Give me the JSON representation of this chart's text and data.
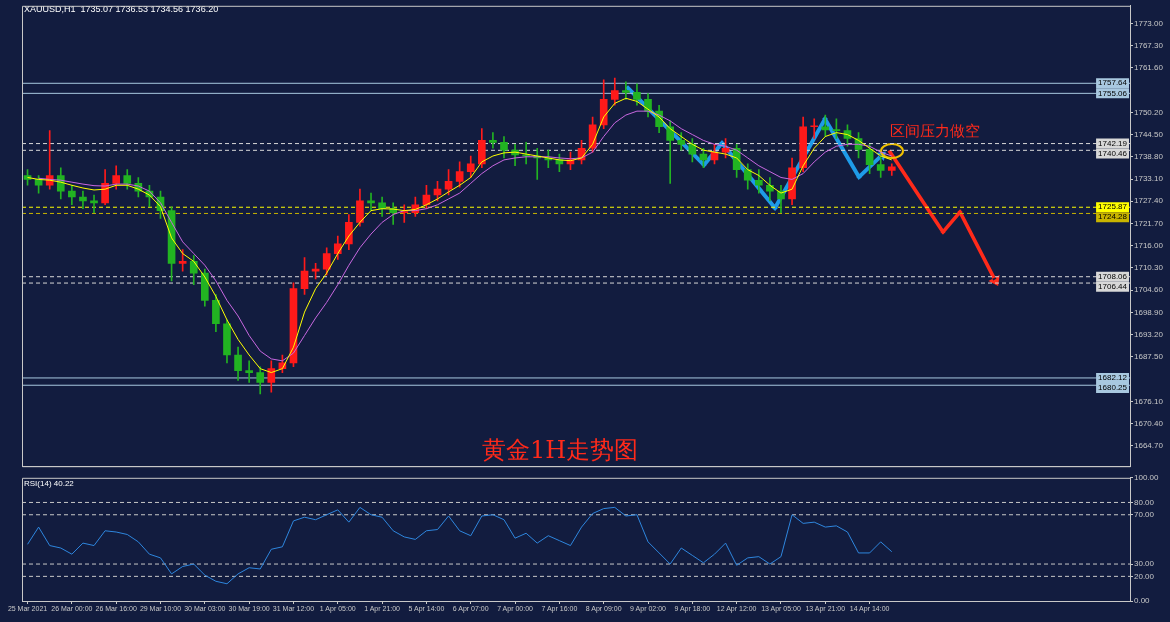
{
  "chart_data": [
    {
      "type": "candlestick",
      "title": "黄金1H走势图",
      "tick_labels": "y",
      "marker": "none",
      "annotations": [
        "XAUUSD,H1  1735.07 1736.53 1734.56 1736.20",
        {
          "text": "区间压力做空",
          "y": 1740.46
        }
      ],
      "categories": [
        null,
        null,
        null,
        null,
        null,
        null,
        null,
        null,
        null,
        null,
        null,
        null,
        null,
        null,
        null,
        null,
        null,
        null,
        null,
        null,
        null,
        null,
        null,
        null,
        null,
        null,
        null,
        null,
        null,
        null,
        null,
        null,
        null,
        null,
        null,
        null,
        null,
        null,
        null,
        null,
        null,
        null,
        null,
        null,
        null,
        null,
        null,
        null,
        null,
        null,
        null,
        null,
        null,
        null,
        null,
        null,
        null,
        null,
        null,
        null,
        null,
        null,
        null,
        null,
        null,
        null,
        null,
        null,
        null,
        null,
        null,
        null,
        null,
        null,
        null,
        null,
        null,
        null,
        null,
        null,
        null,
        null,
        null,
        null,
        null,
        null,
        null,
        null,
        null,
        null,
        null,
        null,
        null,
        null,
        null,
        null,
        null,
        null,
        null,
        null
      ],
      "ohlc": [
        [
          1734,
          1735.5,
          1731.5,
          1733
        ],
        [
          1733,
          1734,
          1729.5,
          1731.5
        ],
        [
          1731.5,
          1745.5,
          1730.5,
          1734
        ],
        [
          1734,
          1736,
          1728,
          1730
        ],
        [
          1730,
          1731.5,
          1726.5,
          1728.5
        ],
        [
          1728.5,
          1730,
          1725.5,
          1727.5
        ],
        [
          1727.5,
          1729,
          1724.5,
          1727
        ],
        [
          1727,
          1735.5,
          1726.5,
          1732
        ],
        [
          1732,
          1736.5,
          1730.5,
          1734
        ],
        [
          1734,
          1735.5,
          1730.5,
          1732
        ],
        [
          1732,
          1733.5,
          1728.5,
          1730
        ],
        [
          1730,
          1731.5,
          1726,
          1728.5
        ],
        [
          1728.5,
          1730,
          1723,
          1725
        ],
        [
          1725,
          1726,
          1707,
          1711.5
        ],
        [
          1711.5,
          1715,
          1709.5,
          1712
        ],
        [
          1712,
          1713.5,
          1706,
          1709
        ],
        [
          1709,
          1710,
          1700.5,
          1702
        ],
        [
          1702,
          1703.5,
          1694,
          1696
        ],
        [
          1696,
          1697,
          1686,
          1688
        ],
        [
          1688,
          1690,
          1681.5,
          1684
        ],
        [
          1684,
          1686.5,
          1681,
          1683.5
        ],
        [
          1683.5,
          1685,
          1678,
          1681
        ],
        [
          1681,
          1686.5,
          1678.5,
          1684.5
        ],
        [
          1684.5,
          1688,
          1683.5,
          1686
        ],
        [
          1686,
          1706.5,
          1685,
          1705
        ],
        [
          1705,
          1713,
          1703.5,
          1709.5
        ],
        [
          1709.5,
          1711.5,
          1707.5,
          1710
        ],
        [
          1710,
          1715.5,
          1708.5,
          1714
        ],
        [
          1714,
          1718.5,
          1712.5,
          1716.5
        ],
        [
          1716.5,
          1724,
          1715,
          1722
        ],
        [
          1722,
          1730.5,
          1721,
          1727.5
        ],
        [
          1727.5,
          1729.5,
          1725,
          1727
        ],
        [
          1727,
          1728.5,
          1723.5,
          1725.5
        ],
        [
          1725.5,
          1727,
          1721.5,
          1724.5
        ],
        [
          1724.5,
          1726.5,
          1722,
          1724.5
        ],
        [
          1724.5,
          1728.5,
          1723.5,
          1726.5
        ],
        [
          1726.5,
          1731.5,
          1725.5,
          1729
        ],
        [
          1729,
          1732.5,
          1727.5,
          1730.5
        ],
        [
          1730.5,
          1735.5,
          1729,
          1732.5
        ],
        [
          1732.5,
          1737.5,
          1731,
          1735
        ],
        [
          1735,
          1739,
          1733.5,
          1737
        ],
        [
          1737,
          1746,
          1736,
          1743
        ],
        [
          1743,
          1745,
          1741,
          1742.5
        ],
        [
          1742.5,
          1744,
          1738.5,
          1740.5
        ],
        [
          1740.5,
          1742,
          1736.5,
          1739.3
        ],
        [
          1739.3,
          1742.5,
          1737,
          1739
        ],
        [
          1739,
          1741,
          1733,
          1738.5
        ],
        [
          1738.5,
          1740.5,
          1736,
          1738
        ],
        [
          1738,
          1739.5,
          1735,
          1737
        ],
        [
          1737,
          1740,
          1735.5,
          1738
        ],
        [
          1738,
          1743,
          1737,
          1741
        ],
        [
          1741,
          1749,
          1740,
          1747
        ],
        [
          1747,
          1758.5,
          1746,
          1753.5
        ],
        [
          1753.5,
          1759,
          1752,
          1755.8
        ],
        [
          1755.8,
          1758,
          1753.5,
          1755.3
        ],
        [
          1755.3,
          1757.5,
          1752,
          1753.5
        ],
        [
          1753.5,
          1755,
          1749,
          1750.5
        ],
        [
          1750.5,
          1752,
          1745,
          1746.5
        ],
        [
          1746.5,
          1748,
          1732,
          1743
        ],
        [
          1743,
          1745,
          1740.5,
          1742
        ],
        [
          1742,
          1743.5,
          1737.5,
          1739.5
        ],
        [
          1739.5,
          1741,
          1736,
          1738
        ],
        [
          1738,
          1742,
          1737,
          1740
        ],
        [
          1740,
          1743.5,
          1738.5,
          1741
        ],
        [
          1741,
          1742,
          1733.5,
          1735.5
        ],
        [
          1735.5,
          1737,
          1730.5,
          1732.8
        ],
        [
          1732.8,
          1735.5,
          1729.5,
          1731.5
        ],
        [
          1731.5,
          1733.5,
          1727.5,
          1730
        ],
        [
          1730,
          1731.5,
          1724.5,
          1728
        ],
        [
          1728,
          1738.5,
          1726.5,
          1736
        ],
        [
          1736,
          1749,
          1735,
          1746.5
        ],
        [
          1746.5,
          1748.5,
          1743.5,
          1746.5
        ],
        [
          1746.5,
          1749.5,
          1744,
          1745.7
        ],
        [
          1745.7,
          1748.5,
          1743.5,
          1745.5
        ],
        [
          1745.5,
          1747,
          1741.5,
          1743.5
        ],
        [
          1743.5,
          1745,
          1738.5,
          1740.7
        ],
        [
          1740.7,
          1742,
          1734.5,
          1736.8
        ],
        [
          1736.8,
          1739,
          1733.5,
          1735.3
        ],
        [
          1735.3,
          1737,
          1734,
          1736.2
        ],
        null,
        null,
        null,
        null,
        null,
        null,
        null,
        null,
        null,
        null,
        null,
        null,
        null,
        null,
        null,
        null,
        null,
        null,
        null,
        null,
        null
      ],
      "series": [
        {
          "type": "line",
          "color": "#ffff00",
          "values": [
            1733.5,
            1733,
            1732.8,
            1732.3,
            1731.5,
            1730.8,
            1730.3,
            1730.5,
            1731.5,
            1731.5,
            1730.5,
            1729,
            1726,
            1718,
            1714,
            1712,
            1708,
            1703,
            1697,
            1692,
            1688,
            1684.5,
            1683.5,
            1684.5,
            1690,
            1699,
            1705,
            1709,
            1714,
            1718.5,
            1722,
            1725,
            1725.5,
            1725.4,
            1725,
            1725.3,
            1726.5,
            1728,
            1729.8,
            1731.5,
            1733.5,
            1737.5,
            1739,
            1739.8,
            1740,
            1739.5,
            1739,
            1738.5,
            1738,
            1737.8,
            1738.5,
            1742,
            1749,
            1752.5,
            1753.8,
            1753,
            1751,
            1749,
            1746,
            1744,
            1742,
            1740.5,
            1740,
            1739.5,
            1738.5,
            1735.5,
            1734,
            1731.5,
            1729.5,
            1730.5,
            1736.5,
            1741,
            1744,
            1745,
            1744.5,
            1743,
            1741,
            1739,
            1738,
            null,
            null,
            null,
            null,
            null,
            null,
            null,
            null,
            null,
            null,
            null,
            null,
            null,
            null,
            null,
            null,
            null,
            null,
            null,
            null,
            null
          ]
        },
        {
          "type": "line",
          "color": "#c868e0",
          "values": [
            null,
            1733.3,
            1733,
            1732.8,
            1732.3,
            1731.8,
            1731.4,
            1731.3,
            1731.8,
            1731.8,
            1731.3,
            1730,
            1727,
            1722,
            1717,
            1714,
            1711,
            1707,
            1702,
            1698,
            1693,
            1689,
            1687,
            1686.5,
            1688.5,
            1693,
            1697.5,
            1701.5,
            1706,
            1711,
            1715.5,
            1719,
            1722,
            1724,
            1725,
            1725,
            1725.5,
            1726.5,
            1728,
            1729.5,
            1732,
            1734.5,
            1736.5,
            1738,
            1738.5,
            1738.8,
            1738.8,
            1738.8,
            1738.5,
            1738.3,
            1738.5,
            1740,
            1744,
            1747.5,
            1749.5,
            1750.5,
            1750.5,
            1749.5,
            1748,
            1746,
            1744.5,
            1743,
            1742,
            1741.5,
            1740.5,
            1738.5,
            1736.5,
            1735,
            1733.5,
            1733,
            1734.5,
            1737.5,
            1740,
            1741.5,
            1742,
            1742,
            1741.5,
            1740,
            1739,
            null,
            null,
            null,
            null,
            null,
            null,
            null,
            null,
            null,
            null,
            null,
            null,
            null,
            null,
            null,
            null,
            null,
            null,
            null,
            null,
            null
          ]
        }
      ],
      "ylim": [
        1659.5,
        1777.5
      ],
      "yticks": [
        {
          "value": 1773,
          "label": "1773.00"
        },
        {
          "value": 1767.3,
          "label": "1767.30"
        },
        {
          "value": 1761.6,
          "label": "1761.60"
        },
        {
          "value": 1750.2,
          "label": "1750.20"
        },
        {
          "value": 1744.5,
          "label": "1744.50"
        },
        {
          "value": 1738.8,
          "label": "1738.80"
        },
        {
          "value": 1733.1,
          "label": "1733.10"
        },
        {
          "value": 1727.4,
          "label": "1727.40"
        },
        {
          "value": 1721.7,
          "label": "1721.70"
        },
        {
          "value": 1716,
          "label": "1716.00"
        },
        {
          "value": 1710.3,
          "label": "1710.30"
        },
        {
          "value": 1704.6,
          "label": "1704.60"
        },
        {
          "value": 1698.9,
          "label": "1698.90"
        },
        {
          "value": 1693.2,
          "label": "1693.20"
        },
        {
          "value": 1687.5,
          "label": "1687.50"
        },
        {
          "value": 1676.1,
          "label": "1676.10"
        },
        {
          "value": 1670.4,
          "label": "1670.40"
        },
        {
          "value": 1664.7,
          "label": "1664.70"
        }
      ],
      "ref_lines": [
        {
          "axis": "y",
          "value": 1757.64,
          "label": "1757.64",
          "color": "#a8c8e0",
          "line_style": "solid"
        },
        {
          "axis": "y",
          "value": 1755.06,
          "label": "1755.06",
          "color": "#a8c8e0",
          "line_style": "solid"
        },
        {
          "axis": "y",
          "value": 1742.19,
          "label": "1742.19",
          "color": "#d8d8d8",
          "line_style": "dashed"
        },
        {
          "axis": "y",
          "value": 1740.46,
          "label": "1740.46",
          "color": "#d8d8d8",
          "line_style": "dashed"
        },
        {
          "axis": "y",
          "value": 1725.87,
          "label": "1725.87",
          "color": "#ffff00",
          "line_style": "dashed"
        },
        {
          "axis": "y",
          "value": 1724.28,
          "label": "1724.28",
          "color": "#c8b400",
          "line_style": "dashed"
        },
        {
          "axis": "y",
          "value": 1708.06,
          "label": "1708.06",
          "color": "#d8d8d8",
          "line_style": "dashed"
        },
        {
          "axis": "y",
          "value": 1706.44,
          "label": "1706.44",
          "color": "#d8d8d8",
          "line_style": "dashed"
        },
        {
          "axis": "y",
          "value": 1682.12,
          "label": "1682.12",
          "color": "#a8c8e0",
          "line_style": "solid"
        },
        {
          "axis": "y",
          "value": 1680.25,
          "label": "1680.25",
          "color": "#a8c8e0",
          "line_style": "solid"
        }
      ]
    },
    {
      "type": "line",
      "marker": "none",
      "annotations": [
        "RSI(14) 40.22"
      ],
      "categories": [
        "25 Mar 2021",
        null,
        null,
        null,
        "26 Mar 00:00",
        null,
        null,
        null,
        "26 Mar 16:00",
        null,
        null,
        null,
        "29 Mar 10:00",
        null,
        null,
        null,
        "30 Mar 03:00",
        null,
        null,
        null,
        "30 Mar 19:00",
        null,
        null,
        null,
        "31 Mar 12:00",
        null,
        null,
        null,
        "1 Apr 05:00",
        null,
        null,
        null,
        "1 Apr 21:00",
        null,
        null,
        null,
        "5 Apr 14:00",
        null,
        null,
        null,
        "6 Apr 07:00",
        null,
        null,
        null,
        "7 Apr 00:00",
        null,
        null,
        null,
        "7 Apr 16:00",
        null,
        null,
        null,
        "8 Apr 09:00",
        null,
        null,
        null,
        "9 Apr 02:00",
        null,
        null,
        null,
        "9 Apr 18:00",
        null,
        null,
        null,
        "12 Apr 12:00",
        null,
        null,
        null,
        "13 Apr 05:00",
        null,
        null,
        null,
        "13 Apr 21:00",
        null,
        null,
        null,
        "14 Apr 14:00",
        null,
        null,
        null,
        null,
        null,
        null,
        null,
        null,
        null,
        null,
        null,
        null,
        null,
        null,
        null,
        null,
        null,
        null,
        null,
        null,
        null,
        null,
        null
      ],
      "series": [
        {
          "color": "#2e86de",
          "values": [
            46,
            60,
            45,
            43,
            38,
            47,
            45,
            57,
            56,
            54,
            48,
            38,
            35,
            22,
            28,
            30,
            21,
            16,
            14,
            22,
            27,
            26,
            42,
            44,
            65,
            68,
            66,
            70,
            74,
            64,
            76,
            70,
            68,
            57,
            52,
            50,
            57,
            58,
            69,
            57,
            53,
            69,
            70,
            66,
            51,
            55,
            47,
            53,
            49,
            45,
            60,
            71,
            75,
            76,
            69,
            70,
            48,
            39,
            30,
            43,
            37,
            31,
            38,
            47,
            29,
            35,
            36,
            30,
            36,
            70,
            63,
            64,
            60,
            61,
            56,
            39,
            39,
            48,
            40,
            null,
            null,
            null,
            null,
            null,
            null,
            null,
            null,
            null,
            null,
            null,
            null,
            null,
            null,
            null,
            null,
            null,
            null,
            null,
            null,
            null
          ]
        }
      ],
      "ylim": [
        0,
        100
      ],
      "yticks": [
        {
          "value": 0,
          "label": "0.00"
        },
        {
          "value": 20,
          "label": "20.00"
        },
        {
          "value": 30,
          "label": "30.00"
        },
        {
          "value": 70,
          "label": "70.00"
        },
        {
          "value": 80,
          "label": "80.00"
        },
        {
          "value": 100,
          "label": "100.00"
        }
      ],
      "ref_lines": [
        {
          "axis": "y",
          "value": 80,
          "color": "#c8c8c8",
          "line_style": "dashed"
        },
        {
          "axis": "y",
          "value": 70,
          "color": "#c8c8c8",
          "line_style": "dashed"
        },
        {
          "axis": "y",
          "value": 30,
          "color": "#c8c8c8",
          "line_style": "dashed"
        },
        {
          "axis": "y",
          "value": 20,
          "color": "#c8c8c8",
          "line_style": "dashed"
        }
      ]
    }
  ]
}
